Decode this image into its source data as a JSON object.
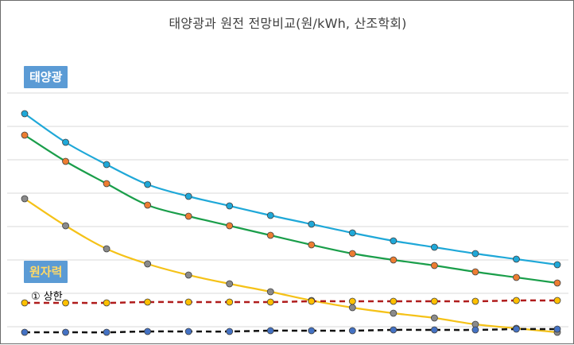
{
  "chart_data": {
    "type": "line",
    "title": "태양광과 원전 전망비교(원/kWh, 산조학회)",
    "xlabel": "",
    "ylabel": "",
    "x": [
      1,
      2,
      3,
      4,
      5,
      6,
      7,
      8,
      9,
      10,
      11,
      12,
      13,
      14
    ],
    "ylim": [
      0,
      290
    ],
    "grid": true,
    "legend": "none",
    "group_labels": {
      "solar": "태양광",
      "nuclear": "원자력"
    },
    "annotations": [
      {
        "text": "① 상한"
      }
    ],
    "series": [
      {
        "group": "solar",
        "line_color": "#1fa8d8",
        "marker_color": "#1fa8d8",
        "line_style": "solid",
        "values": [
          268,
          232,
          204,
          179,
          164,
          152,
          140,
          129,
          118,
          108,
          100,
          92,
          85,
          78
        ]
      },
      {
        "group": "solar",
        "line_color": "#1a9e4a",
        "marker_color": "#ed7d31",
        "line_style": "solid",
        "values": [
          241,
          208,
          180,
          153,
          139,
          127,
          115,
          103,
          92,
          84,
          77,
          69,
          62,
          55
        ]
      },
      {
        "group": "solar",
        "line_color": "#f5c218",
        "marker_color": "#8a8a8a",
        "line_style": "solid",
        "values": [
          161,
          127,
          98,
          79,
          65,
          54,
          44,
          33,
          24,
          17,
          11,
          3,
          -2,
          -7
        ]
      },
      {
        "group": "nuclear",
        "line_color": "#b01c1c",
        "marker_color": "#ffc000",
        "line_style": "dashed",
        "values": [
          30,
          30,
          30,
          31,
          31,
          31,
          31,
          32,
          32,
          32,
          32,
          32,
          33,
          33
        ]
      },
      {
        "group": "nuclear",
        "line_color": "#111111",
        "marker_color": "#4472c4",
        "line_style": "dashed",
        "values": [
          -7,
          -7,
          -7,
          -6,
          -6,
          -6,
          -5,
          -5,
          -5,
          -4,
          -4,
          -4,
          -3,
          -3
        ]
      }
    ]
  }
}
